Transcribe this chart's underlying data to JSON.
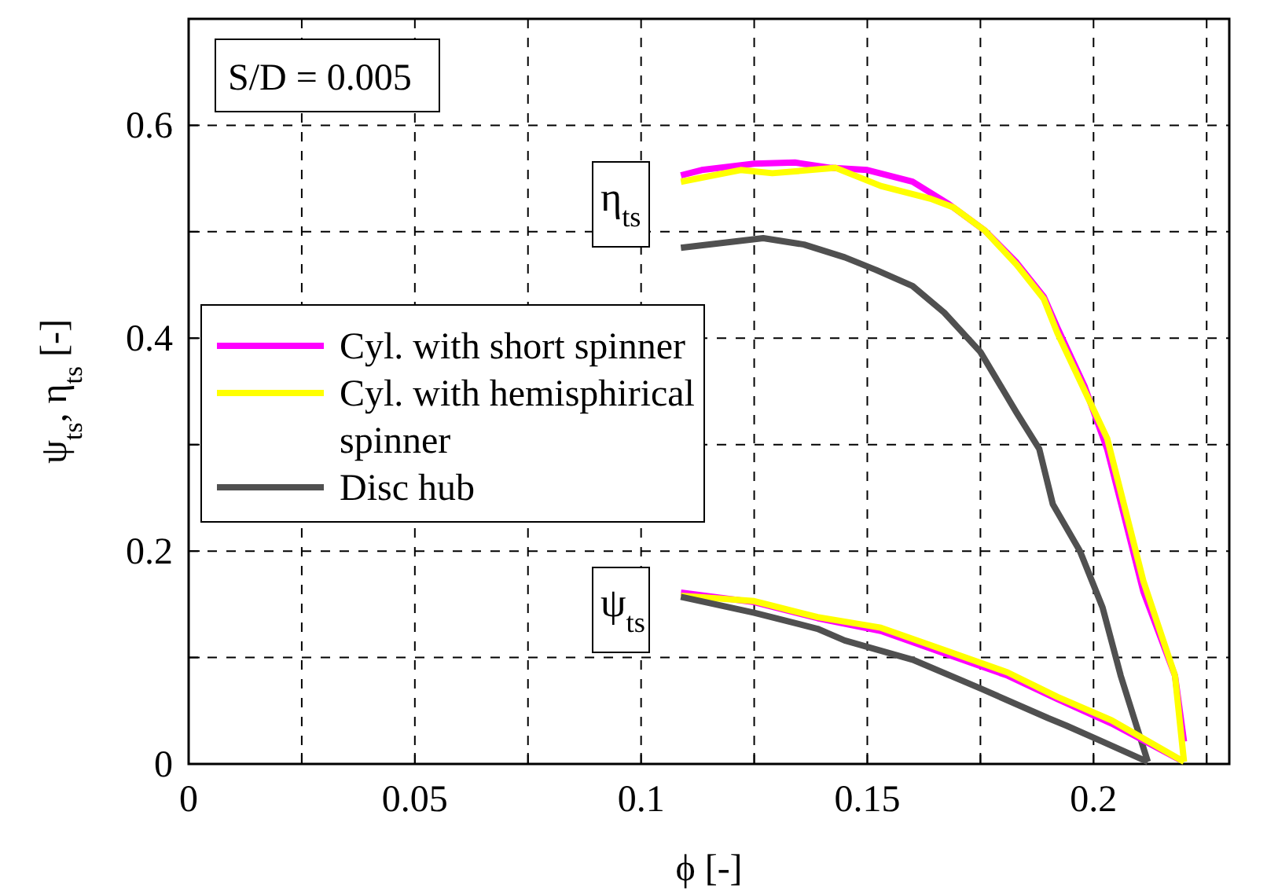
{
  "chart_data": {
    "type": "line",
    "xlabel": "ϕ [-]",
    "ylabel": "ψ$_{ts}$, η$_{ts}$ [-]",
    "xlim": [
      0,
      0.23
    ],
    "ylim": [
      0,
      0.7
    ],
    "xticks": [
      0,
      {
        "value": 0.025,
        "label": null
      },
      0.05,
      {
        "value": 0.075,
        "label": null
      },
      0.1,
      {
        "value": 0.125,
        "label": null
      },
      0.15,
      {
        "value": 0.175,
        "label": null
      },
      0.2,
      {
        "value": 0.225,
        "label": null
      }
    ],
    "yticks": [
      0,
      {
        "value": 0.1,
        "label": null
      },
      0.2,
      {
        "value": 0.3,
        "label": null
      },
      0.4,
      {
        "value": 0.5,
        "label": null
      },
      0.6
    ],
    "grid": true,
    "legend": "left",
    "line_style": "solid",
    "marker": "none",
    "annotations": [
      "S/D = 0.005",
      "η$_{ts}$",
      "ψ$_{ts}$"
    ],
    "series": [
      {
        "name": "Cyl. with short spinner",
        "color": "#ff00ff",
        "x": [
          0.1088,
          0.1134,
          0.125,
          0.134,
          0.142,
          0.15,
          0.16,
          0.168,
          0.176,
          0.183,
          0.189,
          0.192,
          0.198,
          0.203,
          0.206,
          0.211,
          0.218,
          0.22
        ],
        "values": [
          0.553,
          0.558,
          0.564,
          0.565,
          0.56,
          0.558,
          0.547,
          0.526,
          0.501,
          0.471,
          0.439,
          0.41,
          0.355,
          0.296,
          0.246,
          0.162,
          0.083,
          0.021
        ]
      },
      {
        "name": "Cyl. with hemisphirical spinner",
        "color": "#ffff00",
        "x": [
          0.1088,
          0.122,
          0.129,
          0.143,
          0.153,
          0.164,
          0.169,
          0.176,
          0.183,
          0.189,
          0.192,
          0.203,
          0.211,
          0.218,
          0.22
        ],
        "values": [
          0.547,
          0.558,
          0.555,
          0.56,
          0.543,
          0.531,
          0.523,
          0.501,
          0.469,
          0.437,
          0.405,
          0.306,
          0.172,
          0.083,
          0.002
        ]
      },
      {
        "name": "Disc hub",
        "color": "#505050",
        "x": [
          0.1088,
          0.127,
          0.136,
          0.145,
          0.152,
          0.16,
          0.167,
          0.175,
          0.183,
          0.188,
          0.191,
          0.197,
          0.202,
          0.206,
          0.212
        ],
        "values": [
          0.485,
          0.494,
          0.488,
          0.476,
          0.464,
          0.449,
          0.424,
          0.387,
          0.33,
          0.296,
          0.244,
          0.2,
          0.147,
          0.083,
          0.002
        ]
      },
      {
        "color": "#ff00ff",
        "x": [
          0.1088,
          0.125,
          0.139,
          0.153,
          0.167,
          0.181,
          0.192,
          0.204,
          0.219
        ],
        "values": [
          0.161,
          0.152,
          0.137,
          0.125,
          0.104,
          0.083,
          0.061,
          0.038,
          0.004
        ]
      },
      {
        "color": "#ffff00",
        "x": [
          0.1088,
          0.125,
          0.139,
          0.153,
          0.167,
          0.181,
          0.192,
          0.204,
          0.22
        ],
        "values": [
          0.158,
          0.153,
          0.138,
          0.128,
          0.107,
          0.086,
          0.063,
          0.041,
          0.002
        ]
      },
      {
        "color": "#505050",
        "x": [
          0.1088,
          0.125,
          0.139,
          0.145,
          0.16,
          0.175,
          0.19,
          0.194,
          0.202,
          0.212
        ],
        "values": [
          0.157,
          0.142,
          0.127,
          0.116,
          0.098,
          0.071,
          0.043,
          0.036,
          0.021,
          0.002
        ]
      }
    ]
  }
}
